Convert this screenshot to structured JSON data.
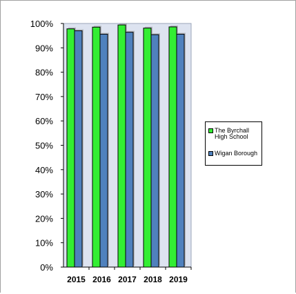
{
  "chart_data": {
    "type": "bar",
    "categories": [
      "2015",
      "2016",
      "2017",
      "2018",
      "2019"
    ],
    "series": [
      {
        "name": "The Byrchall High School",
        "values": [
          97.8,
          98.5,
          99.4,
          98.1,
          98.6
        ],
        "color": "#33ee33"
      },
      {
        "name": "Wigan Borough",
        "values": [
          97.0,
          95.6,
          96.4,
          95.4,
          95.6
        ],
        "color": "#4f81bd"
      }
    ],
    "yticks": [
      "0%",
      "10%",
      "20%",
      "30%",
      "40%",
      "50%",
      "60%",
      "70%",
      "80%",
      "90%",
      "100%"
    ],
    "ylim": [
      0,
      100
    ],
    "grid": false,
    "legend_position": "right",
    "title": "",
    "xlabel": "",
    "ylabel": ""
  }
}
